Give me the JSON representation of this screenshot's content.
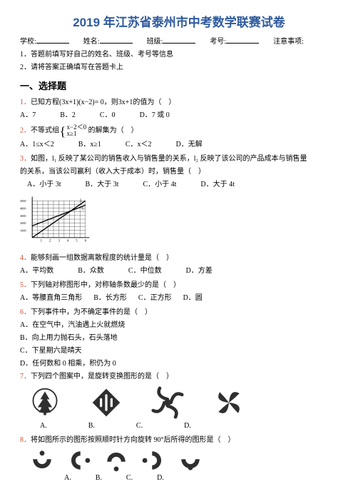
{
  "title": "2019 年江苏省泰州市中考数学联赛试卷",
  "info": {
    "school_label": "学校:",
    "name_label": "姓名:",
    "class_label": "班级:",
    "examno_label": "考号:",
    "note_label": "注意事项:"
  },
  "notes": [
    "1．答题前填写好自己的姓名、班级、考号等信息",
    "2．请将答案正确填写在答题卡上"
  ],
  "section1_title": "一、选择题",
  "q1": {
    "text_a": "已知方程(3x+1)(x−2)= 0，则3x+1的值为（　）",
    "opts": [
      "A．7",
      "B．2",
      "C．0",
      "D．7 或 0"
    ]
  },
  "q2": {
    "text_a": "不等式组",
    "frac_top": "x−2＜0",
    "frac_bot": "x≥1",
    "text_b": "的解集为（　）",
    "opts": [
      "A．1≤x＜2",
      "B．x≥1",
      "C．x＜2",
      "D．无解"
    ]
  },
  "q3": {
    "text_a": "如图，l₁ 反映了某公司的销售收入与销售量的关系，l₂ 反映了该公司的产品成本与销售量",
    "text_b": "的关系，当该公司赢利（收入大于成本）时，销售量（　）",
    "opts": [
      "A．小于 3t",
      "B．大于 3t",
      "C．小于 4t",
      "D．大于 4t"
    ]
  },
  "chart": {
    "y_max": 5000,
    "y_step_count": 5,
    "x_max": 6,
    "x_step_count": 6,
    "l1_start": [
      0,
      0
    ],
    "l1_end": [
      6,
      5.0
    ],
    "l2_start": [
      0,
      1.6
    ],
    "l2_end": [
      6,
      4.4
    ],
    "line_color": "#000000",
    "grid_color": "#333333",
    "bg": "#ffffff",
    "grid_width": 0.4,
    "line_width": 1.4
  },
  "q4": {
    "text": "能够刻画一组数据离散程度的统计量是（　）",
    "opts": [
      "A．平均数",
      "B．众数",
      "C．中位数",
      "D．方差"
    ]
  },
  "q5": {
    "text": "下列轴对称图形中，对称轴条数最少的是（　）",
    "opts": [
      "A．等腰直角三角形",
      "B．长方形",
      "C．正方形",
      "D．圆"
    ]
  },
  "q6": {
    "text": "下列事件中，为不确定事件的是（　）",
    "opts": [
      "A．在空气中，汽油遇上火就燃烧",
      "B．向上用力抛石头，石头落地",
      "C．下星期六是晴天",
      "D．任何数和 0 相乘，积仍为 0"
    ]
  },
  "q7": {
    "text": "下列四个图案中，是旋转变换图形的是（　）",
    "labels": [
      "A.",
      "B.",
      "C.",
      "D."
    ],
    "icon_color": "#2f2f2f"
  },
  "q8": {
    "text": "将如图所示的图形按照顺时针方向旋转 90°后所得的图形是（　）",
    "labels": [
      "A.",
      "B.",
      "C.",
      "D."
    ],
    "icon_color": "#2f2f2f"
  }
}
